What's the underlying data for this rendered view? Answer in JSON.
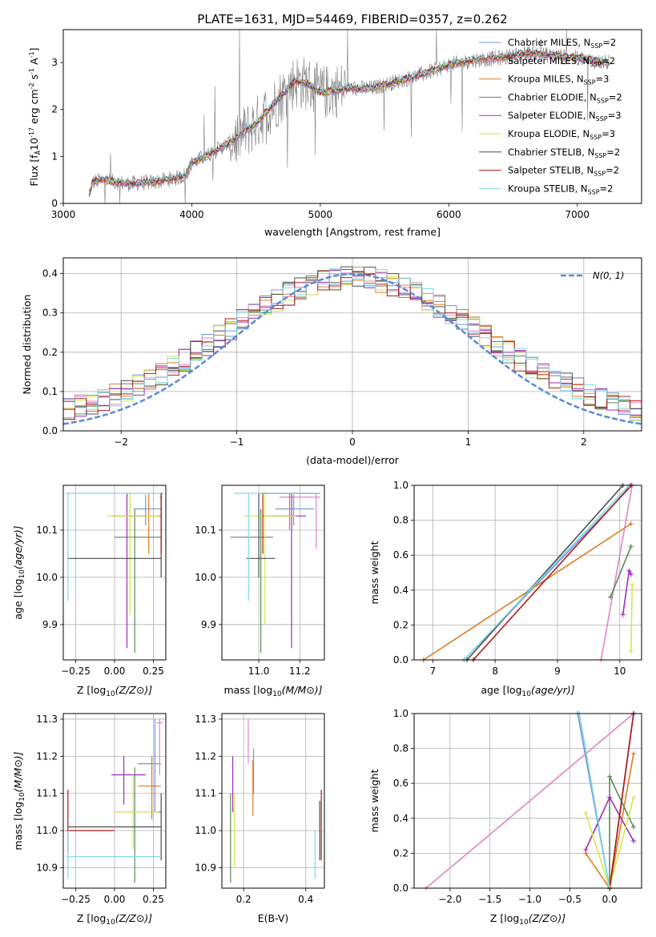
{
  "colors": {
    "Chabrier MILES": "#6f94e0",
    "Salpeter MILES": "#e385c0",
    "Kroupa MILES": "#e07b20",
    "Chabrier ELODIE": "#5a8a5a",
    "Salpeter ELODIE": "#9d2fb8",
    "Kroupa ELODIE": "#d4e84a",
    "Chabrier STELIB": "#4d4d4d",
    "Salpeter STELIB": "#b11a1a",
    "Kroupa STELIB": "#7fd8e8",
    "gaussian": "#5b8ad6",
    "observed": "#808080"
  },
  "chart_data": [
    {
      "type": "line",
      "title": "PLATE=1631, MJD=54469, FIBERID=0357, z=0.262",
      "xlabel": "wavelength [Angstrom, rest frame]",
      "ylabel_prefix": "Flux [f",
      "ylabel_rest": "10",
      "ylabel_exp1": "-17",
      "ylabel_mid": " erg cm",
      "ylabel_exp2": "-2",
      "ylabel_s": " s",
      "ylabel_exp3": "-1",
      "ylabel_end": " A",
      "ylabel_exp4": "-1",
      "ylabel_close": "]",
      "xlim": [
        3000,
        7500
      ],
      "ylim": [
        0,
        3.7
      ],
      "xticks": [
        3000,
        4000,
        5000,
        6000,
        7000
      ],
      "yticks": [
        0,
        1,
        2,
        3
      ],
      "legend": [
        {
          "name": "Chabrier MILES",
          "nssp": "2"
        },
        {
          "name": "Salpeter MILES",
          "nssp": "2"
        },
        {
          "name": "Kroupa MILES",
          "nssp": "3"
        },
        {
          "name": "Chabrier ELODIE",
          "nssp": "2"
        },
        {
          "name": "Salpeter ELODIE",
          "nssp": "3"
        },
        {
          "name": "Kroupa ELODIE",
          "nssp": "3"
        },
        {
          "name": "Chabrier STELIB",
          "nssp": "2"
        },
        {
          "name": "Salpeter STELIB",
          "nssp": "2"
        },
        {
          "name": "Kroupa STELIB",
          "nssp": "2"
        }
      ],
      "continuum": {
        "x": [
          3200,
          3230,
          3300,
          3500,
          3700,
          3900,
          3950,
          4000,
          4100,
          4300,
          4500,
          4700,
          4800,
          4900,
          5000,
          5200,
          5400,
          5600,
          5800,
          6000,
          6200,
          6400,
          6600,
          6800,
          7000,
          7200,
          7250
        ],
        "y": [
          0.2,
          0.45,
          0.5,
          0.42,
          0.45,
          0.55,
          0.6,
          0.85,
          1.0,
          1.3,
          1.7,
          2.3,
          2.6,
          2.55,
          2.35,
          2.45,
          2.45,
          2.6,
          2.75,
          2.95,
          3.05,
          3.1,
          3.2,
          3.15,
          3.1,
          3.0,
          3.0
        ]
      }
    },
    {
      "type": "histogram",
      "xlabel": "(data-model)/error",
      "ylabel": "Normed distribution",
      "xlim": [
        -2.5,
        2.5
      ],
      "ylim": [
        0,
        0.44
      ],
      "xticks": [
        -2,
        -1,
        0,
        1,
        2
      ],
      "yticks": [
        0.0,
        0.1,
        0.2,
        0.3,
        0.4
      ],
      "legend_label": "N(0, 1)",
      "bin_width": 0.1,
      "bin_start": -2.5,
      "base_values": [
        0.03,
        0.03,
        0.035,
        0.04,
        0.045,
        0.05,
        0.06,
        0.07,
        0.08,
        0.085,
        0.09,
        0.1,
        0.115,
        0.13,
        0.15,
        0.17,
        0.19,
        0.21,
        0.23,
        0.24,
        0.255,
        0.27,
        0.29,
        0.3,
        0.32,
        0.33,
        0.34,
        0.35,
        0.355,
        0.36,
        0.37,
        0.375,
        0.38,
        0.38,
        0.385,
        0.385,
        0.38,
        0.375,
        0.37,
        0.36,
        0.35,
        0.345,
        0.34,
        0.33,
        0.32,
        0.31,
        0.3,
        0.29,
        0.285,
        0.28,
        0.27,
        0.26,
        0.25,
        0.24,
        0.23,
        0.215,
        0.2,
        0.185,
        0.17,
        0.16,
        0.145,
        0.13,
        0.12,
        0.11,
        0.1,
        0.09,
        0.08,
        0.07,
        0.065,
        0.06,
        0.055,
        0.05,
        0.045,
        0.04,
        0.035,
        0.03,
        0.03,
        0.03,
        0.03,
        0.03,
        0.03,
        0.03,
        0.03,
        0.03,
        0.03,
        0.03,
        0.03,
        0.03,
        0.03,
        0.03,
        0.03,
        0.03,
        0.03,
        0.03,
        0.03,
        0.03,
        0.03,
        0.03,
        0.03,
        0.03
      ]
    },
    {
      "type": "scatter",
      "xlabel": "Z [log10(Z/Z⊙)]",
      "ylabel": "age  [log10(age/yr)]",
      "xlim": [
        -0.33,
        0.33
      ],
      "ylim": [
        9.825,
        10.195
      ],
      "xticks": [
        -0.25,
        0.0,
        0.25
      ],
      "xticklabels": [
        "−0.25",
        "0.00",
        "0.25"
      ],
      "yticks": [
        9.9,
        10.0,
        10.1
      ],
      "points": [
        {
          "model": "Chabrier MILES",
          "x": 0.2,
          "y": 10.145,
          "xe": [
            0.12,
            0.3
          ],
          "ye": [
            10.11,
            10.175
          ]
        },
        {
          "model": "Salpeter MILES",
          "x": 0.3,
          "y": 10.17,
          "xe": [
            0.29,
            0.31
          ],
          "ye": [
            10.1,
            10.178
          ]
        },
        {
          "model": "Kroupa MILES",
          "x": 0.22,
          "y": 10.13,
          "xe": [
            0.05,
            0.3
          ],
          "ye": [
            10.05,
            10.178
          ]
        },
        {
          "model": "Chabrier ELODIE",
          "x": 0.13,
          "y": 10.085,
          "xe": [
            0.0,
            0.3
          ],
          "ye": [
            9.84,
            10.145
          ]
        },
        {
          "model": "Salpeter ELODIE",
          "x": 0.08,
          "y": 10.13,
          "xe": [
            -0.02,
            0.2
          ],
          "ye": [
            9.85,
            10.178
          ]
        },
        {
          "model": "Kroupa ELODIE",
          "x": 0.1,
          "y": 10.13,
          "xe": [
            -0.05,
            0.28
          ],
          "ye": [
            9.92,
            10.178
          ]
        },
        {
          "model": "Chabrier STELIB",
          "x": 0.3,
          "y": 10.04,
          "xe": [
            -0.3,
            0.3
          ],
          "ye": [
            10.0,
            10.178
          ]
        },
        {
          "model": "Salpeter STELIB",
          "x": 0.3,
          "y": 10.178,
          "xe": [
            0.29,
            0.31
          ],
          "ye": [
            10.05,
            10.178
          ]
        },
        {
          "model": "Kroupa STELIB",
          "x": -0.3,
          "y": 10.178,
          "xe": [
            -0.31,
            0.3
          ],
          "ye": [
            9.95,
            10.178
          ]
        }
      ]
    },
    {
      "type": "scatter",
      "xlabel": "mass [log10(M/M⊙)]",
      "ylabel": "",
      "xlim": [
        10.82,
        11.32
      ],
      "ylim": [
        9.825,
        10.195
      ],
      "xticks": [
        11.0,
        11.2
      ],
      "xticklabels": [
        "11.0",
        "11.2"
      ],
      "yticks": [
        9.9,
        10.0,
        10.1
      ],
      "points": [
        {
          "model": "Chabrier MILES",
          "x": 11.17,
          "y": 10.145,
          "xe": [
            11.08,
            11.27
          ],
          "ye": [
            10.11,
            10.175
          ]
        },
        {
          "model": "Salpeter MILES",
          "x": 11.28,
          "y": 10.17,
          "xe": [
            11.1,
            11.3
          ],
          "ye": [
            10.06,
            10.178
          ]
        },
        {
          "model": "Kroupa MILES",
          "x": 11.15,
          "y": 10.178,
          "xe": [
            11.02,
            11.28
          ],
          "ye": [
            10.1,
            10.178
          ]
        },
        {
          "model": "Chabrier ELODIE",
          "x": 11.01,
          "y": 10.085,
          "xe": [
            10.86,
            11.07
          ],
          "ye": [
            9.84,
            10.145
          ]
        },
        {
          "model": "Salpeter ELODIE",
          "x": 11.16,
          "y": 10.13,
          "xe": [
            11.02,
            11.23
          ],
          "ye": [
            9.85,
            10.178
          ]
        },
        {
          "model": "Kroupa ELODIE",
          "x": 11.03,
          "y": 10.13,
          "xe": [
            10.93,
            11.18
          ],
          "ye": [
            9.9,
            10.178
          ]
        },
        {
          "model": "Chabrier STELIB",
          "x": 11.0,
          "y": 10.04,
          "xe": [
            10.94,
            11.08
          ],
          "ye": [
            10.0,
            10.178
          ]
        },
        {
          "model": "Salpeter STELIB",
          "x": 11.02,
          "y": 10.178,
          "xe": [
            11.0,
            11.3
          ],
          "ye": [
            10.05,
            10.178
          ]
        },
        {
          "model": "Kroupa STELIB",
          "x": 10.95,
          "y": 10.178,
          "xe": [
            10.88,
            11.3
          ],
          "ye": [
            9.95,
            10.178
          ]
        }
      ]
    },
    {
      "type": "line",
      "xlabel": "age  [log10(age/yr)]",
      "ylabel": "mass weight",
      "xlim": [
        6.7,
        10.35
      ],
      "ylim": [
        0,
        1
      ],
      "xticks": [
        7,
        8,
        9,
        10
      ],
      "yticks": [
        0.0,
        0.2,
        0.4,
        0.6,
        0.8,
        1.0
      ],
      "series": [
        {
          "model": "Chabrier MILES",
          "x": [
            7.5,
            10.2
          ],
          "y": [
            0.0,
            1.0
          ]
        },
        {
          "model": "Salpeter MILES",
          "x": [
            9.7,
            10.2
          ],
          "y": [
            0.0,
            1.0
          ]
        },
        {
          "model": "Kroupa MILES",
          "x": [
            6.85,
            10.18
          ],
          "y": [
            0.0,
            0.78
          ]
        },
        {
          "model": "Chabrier ELODIE",
          "x": [
            9.85,
            10.18
          ],
          "y": [
            0.36,
            0.65
          ]
        },
        {
          "model": "Salpeter ELODIE",
          "x": [
            10.05,
            10.15,
            10.18
          ],
          "y": [
            0.26,
            0.51,
            0.49
          ]
        },
        {
          "model": "Kroupa ELODIE",
          "x": [
            10.18,
            10.2
          ],
          "y": [
            0.05,
            0.43
          ]
        },
        {
          "model": "Chabrier STELIB",
          "x": [
            7.55,
            10.05
          ],
          "y": [
            0.0,
            1.0
          ]
        },
        {
          "model": "Salpeter STELIB",
          "x": [
            7.65,
            10.18
          ],
          "y": [
            0.0,
            1.0
          ]
        },
        {
          "model": "Kroupa STELIB",
          "x": [
            7.5,
            10.15
          ],
          "y": [
            0.0,
            1.0
          ]
        }
      ]
    },
    {
      "type": "scatter",
      "xlabel": "Z [log10(Z/Z⊙)]",
      "ylabel": "mass [log10(M/M⊙)]",
      "xlim": [
        -0.33,
        0.33
      ],
      "ylim": [
        10.845,
        11.315
      ],
      "xticks": [
        -0.25,
        0.0,
        0.25
      ],
      "xticklabels": [
        "−0.25",
        "0.00",
        "0.25"
      ],
      "yticks": [
        10.9,
        11.0,
        11.1,
        11.2,
        11.3
      ],
      "points": [
        {
          "model": "Chabrier MILES",
          "x": 0.26,
          "y": 11.18,
          "xe": [
            0.15,
            0.3
          ],
          "ye": [
            11.05,
            11.3
          ]
        },
        {
          "model": "Salpeter MILES",
          "x": 0.29,
          "y": 11.29,
          "xe": [
            0.27,
            0.31
          ],
          "ye": [
            11.15,
            11.3
          ]
        },
        {
          "model": "Kroupa MILES",
          "x": 0.24,
          "y": 11.12,
          "xe": [
            0.15,
            0.3
          ],
          "ye": [
            11.03,
            11.2
          ]
        },
        {
          "model": "Chabrier ELODIE",
          "x": 0.13,
          "y": 11.05,
          "xe": [
            0.0,
            0.3
          ],
          "ye": [
            10.86,
            11.17
          ]
        },
        {
          "model": "Salpeter ELODIE",
          "x": 0.06,
          "y": 11.15,
          "xe": [
            -0.02,
            0.2
          ],
          "ye": [
            11.07,
            11.2
          ]
        },
        {
          "model": "Kroupa ELODIE",
          "x": 0.12,
          "y": 11.05,
          "xe": [
            0.0,
            0.28
          ],
          "ye": [
            10.95,
            11.15
          ]
        },
        {
          "model": "Chabrier STELIB",
          "x": 0.3,
          "y": 11.01,
          "xe": [
            -0.3,
            0.3
          ],
          "ye": [
            10.92,
            11.1
          ]
        },
        {
          "model": "Salpeter STELIB",
          "x": -0.3,
          "y": 11.0,
          "xe": [
            -0.31,
            0.0
          ],
          "ye": [
            10.94,
            11.11
          ]
        },
        {
          "model": "Kroupa STELIB",
          "x": -0.3,
          "y": 10.93,
          "xe": [
            -0.31,
            0.3
          ],
          "ye": [
            10.87,
            11.0
          ]
        }
      ]
    },
    {
      "type": "scatter",
      "xlabel": "E(B-V)",
      "ylabel": "",
      "xlim": [
        0.13,
        0.46
      ],
      "ylim": [
        10.845,
        11.315
      ],
      "xticks": [
        0.2,
        0.4
      ],
      "xticklabels": [
        "0.2",
        "0.4"
      ],
      "yticks": [
        10.9,
        11.0,
        11.1,
        11.2,
        11.3
      ],
      "points": [
        {
          "model": "Chabrier MILES",
          "x": 0.232,
          "y": 11.18,
          "ye": [
            11.1,
            11.22
          ]
        },
        {
          "model": "Salpeter MILES",
          "x": 0.215,
          "y": 11.29,
          "ye": [
            11.18,
            11.3
          ]
        },
        {
          "model": "Kroupa MILES",
          "x": 0.23,
          "y": 11.12,
          "ye": [
            11.04,
            11.19
          ]
        },
        {
          "model": "Chabrier ELODIE",
          "x": 0.158,
          "y": 11.05,
          "ye": [
            10.86,
            11.1
          ]
        },
        {
          "model": "Salpeter ELODIE",
          "x": 0.165,
          "y": 11.15,
          "ye": [
            11.05,
            11.2
          ]
        },
        {
          "model": "Kroupa ELODIE",
          "x": 0.17,
          "y": 11.05,
          "ye": [
            10.9,
            11.1
          ]
        },
        {
          "model": "Chabrier STELIB",
          "x": 0.445,
          "y": 11.01,
          "ye": [
            10.92,
            11.08
          ]
        },
        {
          "model": "Salpeter STELIB",
          "x": 0.45,
          "y": 11.0,
          "ye": [
            10.92,
            11.11
          ]
        },
        {
          "model": "Kroupa STELIB",
          "x": 0.43,
          "y": 10.93,
          "ye": [
            10.87,
            11.0
          ]
        }
      ]
    },
    {
      "type": "line",
      "xlabel": "Z [log10(Z/Z⊙)]",
      "ylabel": "mass weight",
      "xlim": [
        -2.45,
        0.4
      ],
      "ylim": [
        0,
        1
      ],
      "xticks": [
        -2.0,
        -1.5,
        -1.0,
        -0.5,
        0.0
      ],
      "xticklabels": [
        "−2.0",
        "−1.5",
        "−1.0",
        "−0.5",
        "0.0"
      ],
      "yticks": [
        0.0,
        0.2,
        0.4,
        0.6,
        0.8,
        1.0
      ],
      "series": [
        {
          "model": "Chabrier MILES",
          "x": [
            -0.4,
            0.0
          ],
          "y": [
            1.0,
            0.0
          ]
        },
        {
          "model": "Salpeter MILES",
          "x": [
            -2.3,
            0.3
          ],
          "y": [
            0.0,
            1.0
          ]
        },
        {
          "model": "Kroupa MILES",
          "x": [
            -0.3,
            0.0,
            0.3
          ],
          "y": [
            0.2,
            0.0,
            0.77
          ]
        },
        {
          "model": "Chabrier ELODIE",
          "x": [
            0.0,
            0.0,
            0.3
          ],
          "y": [
            0.0,
            0.64,
            0.35
          ]
        },
        {
          "model": "Salpeter ELODIE",
          "x": [
            -0.3,
            0.0,
            0.3
          ],
          "y": [
            0.22,
            0.52,
            0.27
          ]
        },
        {
          "model": "Kroupa ELODIE",
          "x": [
            -0.3,
            0.0,
            0.3
          ],
          "y": [
            0.43,
            0.0,
            0.52
          ]
        },
        {
          "model": "Chabrier STELIB",
          "x": [
            0.0,
            0.3
          ],
          "y": [
            0.0,
            1.0
          ]
        },
        {
          "model": "Salpeter STELIB",
          "x": [
            0.0,
            0.3
          ],
          "y": [
            0.0,
            1.0
          ]
        },
        {
          "model": "Kroupa STELIB",
          "x": [
            -0.38,
            0.0
          ],
          "y": [
            1.0,
            0.0
          ]
        }
      ]
    }
  ]
}
